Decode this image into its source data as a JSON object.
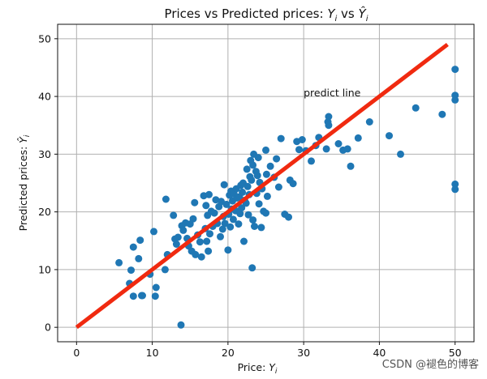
{
  "chart_data": {
    "type": "scatter",
    "title": "Prices vs Predicted prices: Y_i vs Ŷ_i",
    "title_parts": {
      "prefix": "Prices vs Predicted prices: ",
      "y": "Y",
      "i": "i",
      "vs": " vs ",
      "yhat": "Ŷ",
      "i2": "i"
    },
    "xlabel": "Price: Y_i",
    "xlabel_parts": {
      "prefix": "Price: ",
      "y": "Y",
      "i": "i"
    },
    "ylabel": "Predicted prices: Ŷ_i",
    "ylabel_parts": {
      "prefix": "Predicted prices: ",
      "yhat": "Ŷ",
      "i": "i"
    },
    "xlim": [
      -2.5,
      52.5
    ],
    "ylim": [
      -2.5,
      52.5
    ],
    "xticks": [
      0,
      10,
      20,
      30,
      40,
      50
    ],
    "yticks": [
      0,
      10,
      20,
      30,
      40,
      50
    ],
    "grid": true,
    "point_color": "#1f77b4",
    "line_color": "#f02a10",
    "annotation": {
      "text": "predict line",
      "x": 30,
      "y": 40
    },
    "line": {
      "x": [
        0,
        49
      ],
      "y": [
        0,
        49
      ]
    },
    "points": [
      [
        5.6,
        11.2
      ],
      [
        7.2,
        9.9
      ],
      [
        7.0,
        7.6
      ],
      [
        7.5,
        5.4
      ],
      [
        7.5,
        13.9
      ],
      [
        8.2,
        11.9
      ],
      [
        8.4,
        15.1
      ],
      [
        8.6,
        5.5
      ],
      [
        8.7,
        5.5
      ],
      [
        9.7,
        9.2
      ],
      [
        10.2,
        16.6
      ],
      [
        10.4,
        5.4
      ],
      [
        10.5,
        6.9
      ],
      [
        11.7,
        10.0
      ],
      [
        11.8,
        22.2
      ],
      [
        12.0,
        12.6
      ],
      [
        13.0,
        15.3
      ],
      [
        13.2,
        14.4
      ],
      [
        13.4,
        15.6
      ],
      [
        13.8,
        0.4
      ],
      [
        12.8,
        19.4
      ],
      [
        13.9,
        17.6
      ],
      [
        14.1,
        16.8
      ],
      [
        14.4,
        18.1
      ],
      [
        14.6,
        15.4
      ],
      [
        14.8,
        14.1
      ],
      [
        15.0,
        17.9
      ],
      [
        15.2,
        13.2
      ],
      [
        15.4,
        18.8
      ],
      [
        15.6,
        21.6
      ],
      [
        15.7,
        12.6
      ],
      [
        16.0,
        16.0
      ],
      [
        16.3,
        14.8
      ],
      [
        16.5,
        12.2
      ],
      [
        16.8,
        22.8
      ],
      [
        17.0,
        17.1
      ],
      [
        17.1,
        21.1
      ],
      [
        17.2,
        14.9
      ],
      [
        17.3,
        19.4
      ],
      [
        17.4,
        13.2
      ],
      [
        17.5,
        23.0
      ],
      [
        17.6,
        16.2
      ],
      [
        17.8,
        20.1
      ],
      [
        18.0,
        17.5
      ],
      [
        18.2,
        19.8
      ],
      [
        18.4,
        22.1
      ],
      [
        18.6,
        18.0
      ],
      [
        18.8,
        20.9
      ],
      [
        19.0,
        15.7
      ],
      [
        19.1,
        21.8
      ],
      [
        19.3,
        17.0
      ],
      [
        19.4,
        19.2
      ],
      [
        19.5,
        24.7
      ],
      [
        19.6,
        18.0
      ],
      [
        19.8,
        21.3
      ],
      [
        20.0,
        13.4
      ],
      [
        20.1,
        19.6
      ],
      [
        20.2,
        22.9
      ],
      [
        20.3,
        17.4
      ],
      [
        20.4,
        23.6
      ],
      [
        20.5,
        20.5
      ],
      [
        20.6,
        21.9
      ],
      [
        20.7,
        18.7
      ],
      [
        20.8,
        23.1
      ],
      [
        21.0,
        20.2
      ],
      [
        21.1,
        24.0
      ],
      [
        21.2,
        22.4
      ],
      [
        21.4,
        17.9
      ],
      [
        21.5,
        22.6
      ],
      [
        21.6,
        19.7
      ],
      [
        21.7,
        24.6
      ],
      [
        21.8,
        20.7
      ],
      [
        21.9,
        23.4
      ],
      [
        22.0,
        25.0
      ],
      [
        22.1,
        14.9
      ],
      [
        22.2,
        22.0
      ],
      [
        22.4,
        21.5
      ],
      [
        22.5,
        27.4
      ],
      [
        22.6,
        24.4
      ],
      [
        22.7,
        19.5
      ],
      [
        22.8,
        23.0
      ],
      [
        22.9,
        26.1
      ],
      [
        23.0,
        28.9
      ],
      [
        23.1,
        25.5
      ],
      [
        23.2,
        10.3
      ],
      [
        23.3,
        28.1
      ],
      [
        23.3,
        18.6
      ],
      [
        23.4,
        30.0
      ],
      [
        23.5,
        17.5
      ],
      [
        23.7,
        27.0
      ],
      [
        23.8,
        23.2
      ],
      [
        23.9,
        26.3
      ],
      [
        24.0,
        29.4
      ],
      [
        24.1,
        21.4
      ],
      [
        24.2,
        25.1
      ],
      [
        24.4,
        17.3
      ],
      [
        24.5,
        24.0
      ],
      [
        24.7,
        20.1
      ],
      [
        25.0,
        19.8
      ],
      [
        25.0,
        30.7
      ],
      [
        25.1,
        26.5
      ],
      [
        25.2,
        22.7
      ],
      [
        25.6,
        27.9
      ],
      [
        26.1,
        26.0
      ],
      [
        26.4,
        29.2
      ],
      [
        26.7,
        24.3
      ],
      [
        27.0,
        32.7
      ],
      [
        27.5,
        19.6
      ],
      [
        28.0,
        19.1
      ],
      [
        28.2,
        25.5
      ],
      [
        28.6,
        24.9
      ],
      [
        29.1,
        32.2
      ],
      [
        29.4,
        30.8
      ],
      [
        29.8,
        32.5
      ],
      [
        30.3,
        30.6
      ],
      [
        31.0,
        28.8
      ],
      [
        31.6,
        31.5
      ],
      [
        32.0,
        32.9
      ],
      [
        33.0,
        30.9
      ],
      [
        33.2,
        35.6
      ],
      [
        33.3,
        36.5
      ],
      [
        33.3,
        35.0
      ],
      [
        34.6,
        31.8
      ],
      [
        35.2,
        30.7
      ],
      [
        35.8,
        30.9
      ],
      [
        36.2,
        27.9
      ],
      [
        37.2,
        32.8
      ],
      [
        38.7,
        35.6
      ],
      [
        41.3,
        33.2
      ],
      [
        42.8,
        30.0
      ],
      [
        44.8,
        38.0
      ],
      [
        48.3,
        36.9
      ],
      [
        50.0,
        44.7
      ],
      [
        50.0,
        40.2
      ],
      [
        50.0,
        39.4
      ],
      [
        50.0,
        24.8
      ],
      [
        50.0,
        23.9
      ]
    ]
  },
  "watermark": "CSDN @褪色的博客"
}
